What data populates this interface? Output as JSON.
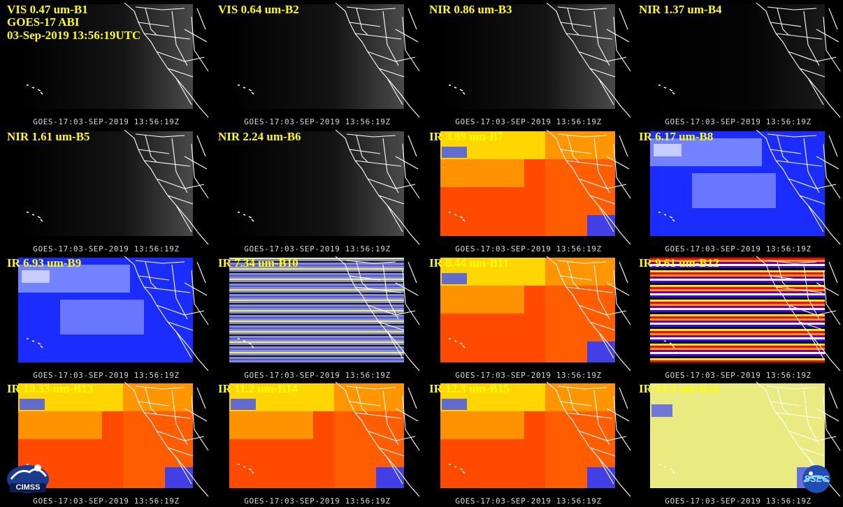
{
  "header": {
    "line1": "GOES-17 ABI",
    "line2": "03-Sep-2019 13:56:19UTC"
  },
  "timestamp": "GOES-17:03-SEP-2019 13:56:19Z",
  "panels": [
    {
      "label": "VIS 0.47 um-B1",
      "style": "vis"
    },
    {
      "label": "VIS 0.64 um-B2",
      "style": "vis"
    },
    {
      "label": "NIR 0.86 um-B3",
      "style": "vis"
    },
    {
      "label": "NIR 1.37 um-B4",
      "style": "dark"
    },
    {
      "label": "NIR 1.61 um-B5",
      "style": "vis"
    },
    {
      "label": "NIR 2.24 um-B6",
      "style": "vis"
    },
    {
      "label": "IR 3.89 um-B7",
      "style": "ir"
    },
    {
      "label": "IR 6.17 um-B8",
      "style": "wv"
    },
    {
      "label": "IR 6.93 um-B9",
      "style": "wv2"
    },
    {
      "label": "IR 7.34 um-B10",
      "style": "striped-wv"
    },
    {
      "label": "IR 8.44 um-B11",
      "style": "ir"
    },
    {
      "label": "IR 9.61 um-B12",
      "style": "striped"
    },
    {
      "label": "IR 10.33 um-B13",
      "style": "ir"
    },
    {
      "label": "IR 11.2 um-B14",
      "style": "ir"
    },
    {
      "label": "IR 12.3 um-B15",
      "style": "ir"
    },
    {
      "label": "IR 13.3 um-B16",
      "style": "yellow"
    }
  ],
  "logos": {
    "left": "CIMSS",
    "right": "SSEC"
  },
  "colors": {
    "label": "#ffff00",
    "coast": "#ffffff",
    "ir_warm": "#ff4a00",
    "ir_cool": "#ffee00",
    "wv_blue": "#1a2cff"
  }
}
